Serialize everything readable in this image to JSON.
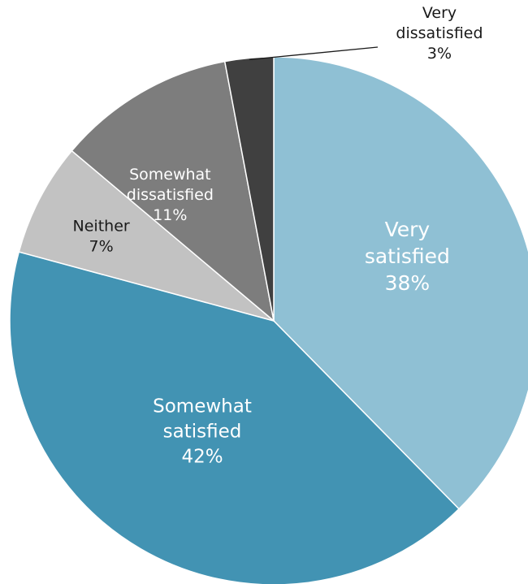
{
  "chart_data": {
    "type": "pie",
    "title": "",
    "start_angle_deg": 0,
    "direction": "clockwise",
    "slices": [
      {
        "label": "Very satisfied",
        "value": 38,
        "display": "38%",
        "color": "#8fc0d4",
        "label_color": "#ffffff"
      },
      {
        "label": "Somewhat satisfied",
        "value": 42,
        "display": "42%",
        "color": "#4293b3",
        "label_color": "#ffffff"
      },
      {
        "label": "Neither",
        "value": 7,
        "display": "7%",
        "color": "#c2c2c2",
        "label_color": "#1a1a1a"
      },
      {
        "label": "Somewhat dissatisfied",
        "value": 11,
        "display": "11%",
        "color": "#7d7d7d",
        "label_color": "#ffffff"
      },
      {
        "label": "Very dissatisfied",
        "value": 3,
        "display": "3%",
        "color": "#404040",
        "label_color": "#1a1a1a",
        "label_outside": true
      }
    ]
  }
}
